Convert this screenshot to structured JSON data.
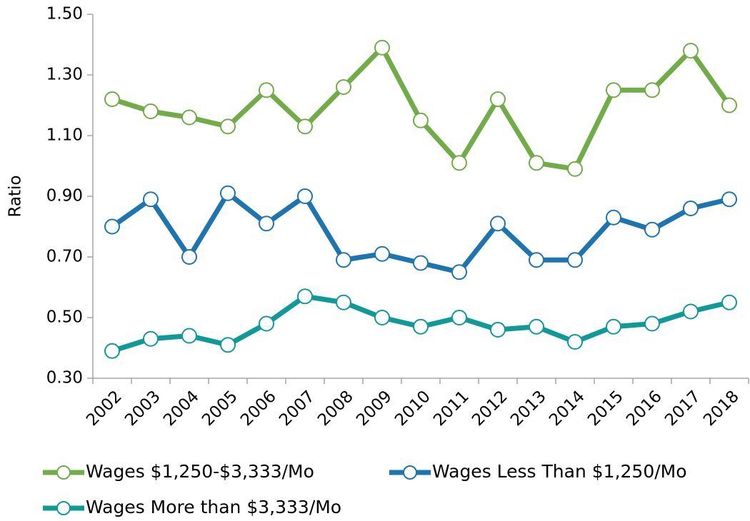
{
  "chart_data": {
    "type": "line",
    "y_label": "Ratio",
    "categories": [
      "2002",
      "2003",
      "2004",
      "2005",
      "2006",
      "2007",
      "2008",
      "2009",
      "2010",
      "2011",
      "2012",
      "2013",
      "2014",
      "2015",
      "2016",
      "2017",
      "2018"
    ],
    "series": [
      {
        "name": "Wages $1,250-$3,333/Mo",
        "color": "#70ad47",
        "values": [
          1.22,
          1.18,
          1.16,
          1.13,
          1.25,
          1.13,
          1.26,
          1.39,
          1.15,
          1.01,
          1.22,
          1.01,
          0.99,
          1.25,
          1.25,
          1.38,
          1.2
        ]
      },
      {
        "name": "Wages Less Than $1,250/Mo",
        "color": "#1b75b0",
        "values": [
          0.8,
          0.89,
          0.7,
          0.91,
          0.81,
          0.9,
          0.69,
          0.71,
          0.68,
          0.65,
          0.81,
          0.69,
          0.69,
          0.83,
          0.79,
          0.86,
          0.89
        ]
      },
      {
        "name": "Wages More than $3,333/Mo",
        "color": "#0e9a97",
        "values": [
          0.39,
          0.43,
          0.44,
          0.41,
          0.48,
          0.57,
          0.55,
          0.5,
          0.47,
          0.5,
          0.46,
          0.47,
          0.42,
          0.47,
          0.48,
          0.52,
          0.55
        ]
      }
    ],
    "ylim": [
      0.3,
      1.5
    ],
    "yticks": [
      {
        "value": 0.3,
        "label": "0.30"
      },
      {
        "value": 0.5,
        "label": "0.50"
      },
      {
        "value": 0.7,
        "label": "0.70"
      },
      {
        "value": 0.9,
        "label": "0.90"
      },
      {
        "value": 1.1,
        "label": "1.10"
      },
      {
        "value": 1.3,
        "label": "1.30"
      },
      {
        "value": 1.5,
        "label": "1.50"
      }
    ],
    "grid": false,
    "legend": "bottom"
  }
}
